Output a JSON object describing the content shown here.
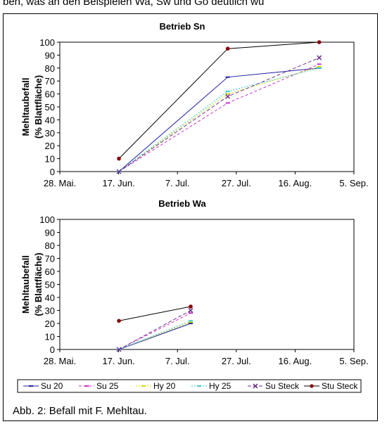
{
  "page": {
    "top_text": "ben, was an den Beispielen Wa, Sw und Go deutlich wu",
    "caption": "Abb. 2: Befall mit F. Mehltau."
  },
  "chart_data": [
    {
      "type": "line",
      "title": "Betrieb Sn",
      "ylabel_line1": "Mehltaubefall",
      "ylabel_line2": "(% Blattfläche)",
      "ylim": [
        0,
        100
      ],
      "yticks": [
        0,
        10,
        20,
        30,
        40,
        50,
        60,
        70,
        80,
        90,
        100
      ],
      "xticks": [
        "28. Mai.",
        "17. Jun.",
        "7. Jul.",
        "27. Jul.",
        "16. Aug.",
        "5. Sep."
      ],
      "grid": false,
      "series": [
        {
          "name": "Su 20",
          "values": [
            [
              20.1,
              0
            ],
            [
              57.1,
              73
            ],
            [
              88.2,
              80
            ]
          ]
        },
        {
          "name": "Su 25",
          "values": [
            [
              20.1,
              0
            ],
            [
              57.1,
              53
            ],
            [
              88.2,
              83
            ]
          ]
        },
        {
          "name": "Hy 20",
          "values": [
            [
              20.1,
              0
            ],
            [
              57.1,
              60
            ],
            [
              88.2,
              81
            ]
          ]
        },
        {
          "name": "Hy 25",
          "values": [
            [
              20.1,
              0
            ],
            [
              57.1,
              62
            ],
            [
              88.2,
              80
            ]
          ]
        },
        {
          "name": "Su Steck",
          "values": [
            [
              20.1,
              0
            ],
            [
              57.1,
              58
            ],
            [
              88.2,
              88
            ]
          ]
        },
        {
          "name": "Stu Steck",
          "values": [
            [
              20.1,
              10
            ],
            [
              57.1,
              95
            ],
            [
              88.2,
              100
            ]
          ]
        }
      ]
    },
    {
      "type": "line",
      "title": "Betrieb Wa",
      "ylabel_line1": "Mehltaubefall",
      "ylabel_line2": "(% Blattfläche)",
      "ylim": [
        0,
        100
      ],
      "yticks": [
        0,
        10,
        20,
        30,
        40,
        50,
        60,
        70,
        80,
        90,
        100
      ],
      "xticks": [
        "28. Mai.",
        "17. Jun.",
        "7. Jul.",
        "27. Jul.",
        "16. Aug.",
        "5. Sep."
      ],
      "grid": false,
      "series": [
        {
          "name": "Su 20",
          "values": [
            [
              20.1,
              0
            ],
            [
              44.5,
              20
            ]
          ]
        },
        {
          "name": "Su 25",
          "values": [
            [
              20.1,
              0
            ],
            [
              44.5,
              28
            ]
          ]
        },
        {
          "name": "Hy 20",
          "values": [
            [
              20.1,
              0
            ],
            [
              44.5,
              21
            ]
          ]
        },
        {
          "name": "Hy 25",
          "values": [
            [
              20.1,
              0
            ],
            [
              44.5,
              22
            ]
          ]
        },
        {
          "name": "Su Steck",
          "values": [
            [
              20.1,
              0
            ],
            [
              44.5,
              30
            ]
          ]
        },
        {
          "name": "Stu Steck",
          "values": [
            [
              20.1,
              22
            ],
            [
              44.5,
              33
            ]
          ]
        }
      ]
    }
  ],
  "legend": [
    {
      "name": "Su 20",
      "color": "#1f1fa0",
      "dash": "",
      "marker": "dash"
    },
    {
      "name": "Su 25",
      "color": "#cc33cc",
      "dash": "4,3",
      "marker": "dash"
    },
    {
      "name": "Hy 20",
      "color": "#d6d600",
      "dash": "2,2",
      "marker": "dash"
    },
    {
      "name": "Hy 25",
      "color": "#33cccc",
      "dash": "2,2",
      "marker": "dash"
    },
    {
      "name": "Su Steck",
      "color": "#6b2f8f",
      "dash": "5,3",
      "marker": "x"
    },
    {
      "name": "Stu Steck",
      "color": "#8b0000",
      "dash": "",
      "marker": "dot"
    }
  ]
}
